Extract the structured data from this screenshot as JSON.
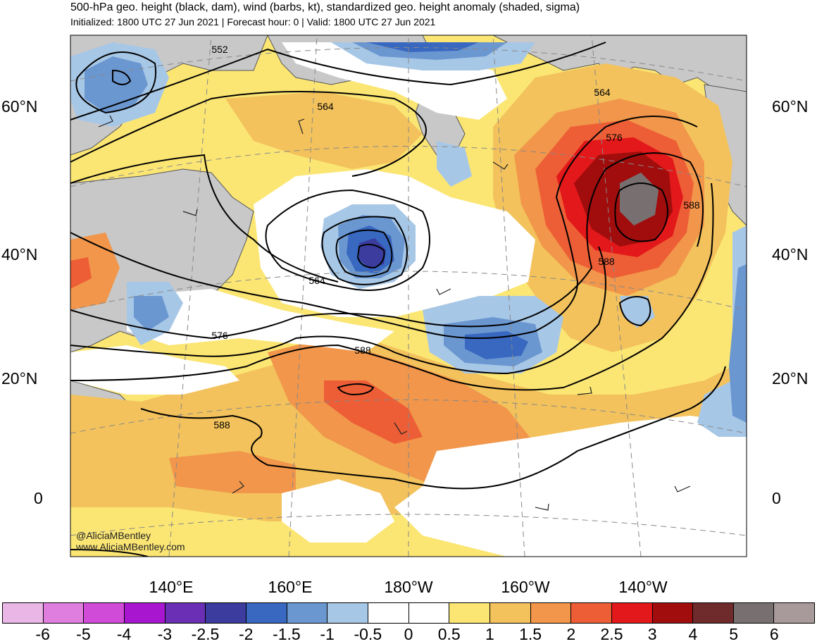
{
  "header": {
    "title": "500-hPa geo. height (black, dam), wind (barbs, kt), standardized geo. height anomaly (shaded, sigma)",
    "subtitle": "Initialized: 1800 UTC 27 Jun 2021 | Forecast hour: 0 | Valid: 1800 UTC 27 Jun 2021"
  },
  "map": {
    "lat_labels_left": [
      "60°N",
      "40°N",
      "20°N",
      "0"
    ],
    "lat_labels_right": [
      "60°N",
      "40°N",
      "20°N",
      "0"
    ],
    "lon_labels": [
      "140°E",
      "160°E",
      "180°W",
      "160°W",
      "140°W"
    ],
    "contour_labels": [
      "552",
      "564",
      "564",
      "564",
      "576",
      "576",
      "588",
      "588",
      "588",
      "588"
    ],
    "credit_line1": "@AliciaMBentley",
    "credit_line2": "www.AliciaMBentley.com"
  },
  "colorbar": {
    "tick_labels": [
      "-6",
      "-5",
      "-4",
      "-3",
      "-2.5",
      "-2",
      "-1.5",
      "-1",
      "-0.5",
      "0",
      "0.5",
      "1",
      "1.5",
      "2",
      "2.5",
      "3",
      "4",
      "5",
      "6"
    ],
    "colors": [
      "#e9b6e6",
      "#e07ee0",
      "#d14bd9",
      "#a817cf",
      "#6a2fb4",
      "#3b3c9e",
      "#3868c0",
      "#6b97d1",
      "#a7c7e6",
      "#ffffff",
      "#ffffff",
      "#fbe674",
      "#f3c25c",
      "#f1964a",
      "#ee5e36",
      "#e3181a",
      "#a10d0d",
      "#6f2b2b",
      "#787070",
      "#a89a9a"
    ]
  }
}
